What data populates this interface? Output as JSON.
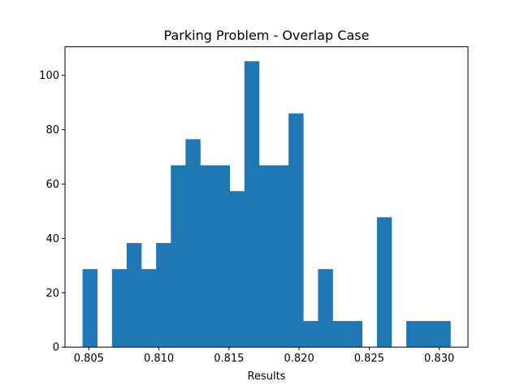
{
  "chart_data": {
    "type": "bar",
    "title": "Parking Problem - Overlap Case",
    "xlabel": "Results",
    "ylabel": "",
    "bar_color": "#1f77b4",
    "bin_width": 0.00105,
    "bin_starts": [
      0.80455,
      0.8056,
      0.80665,
      0.8077,
      0.80875,
      0.8098,
      0.81085,
      0.8119,
      0.81295,
      0.814,
      0.81505,
      0.8161,
      0.81715,
      0.8182,
      0.81925,
      0.8203,
      0.82135,
      0.8224,
      0.82345,
      0.8245,
      0.82555,
      0.8266,
      0.82765,
      0.8287,
      0.82975,
      0.8308
    ],
    "values": [
      28.7,
      0,
      28.7,
      38.3,
      28.7,
      38.3,
      66.9,
      76.5,
      66.9,
      66.9,
      57.4,
      105.2,
      66.9,
      66.9,
      86.0,
      9.6,
      28.7,
      9.6,
      9.6,
      0,
      47.8,
      0,
      9.6,
      9.6,
      9.6
    ],
    "xlim": [
      0.8033,
      0.83205
    ],
    "ylim": [
      0,
      110.5
    ],
    "xticks": [
      {
        "value": 0.805,
        "label": "0.805"
      },
      {
        "value": 0.81,
        "label": "0.810"
      },
      {
        "value": 0.815,
        "label": "0.815"
      },
      {
        "value": 0.82,
        "label": "0.820"
      },
      {
        "value": 0.825,
        "label": "0.825"
      },
      {
        "value": 0.83,
        "label": "0.830"
      }
    ],
    "yticks": [
      {
        "value": 0,
        "label": "0"
      },
      {
        "value": 20,
        "label": "20"
      },
      {
        "value": 40,
        "label": "40"
      },
      {
        "value": 60,
        "label": "60"
      },
      {
        "value": 80,
        "label": "80"
      },
      {
        "value": 100,
        "label": "100"
      }
    ],
    "grid": false,
    "legend": "none"
  }
}
